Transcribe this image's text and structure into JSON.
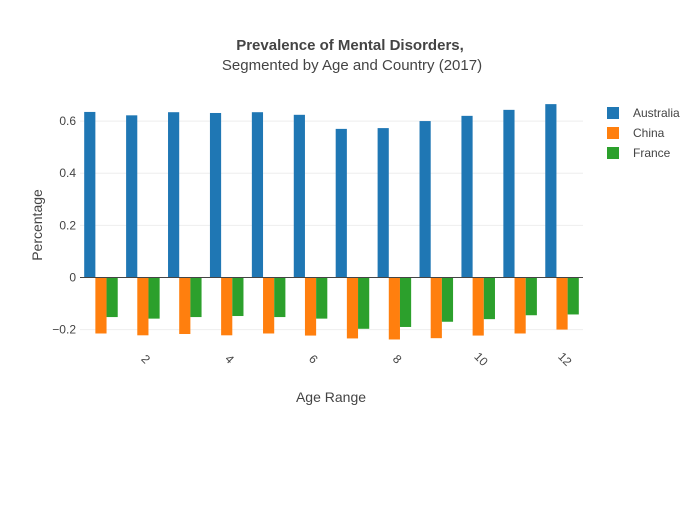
{
  "chart_data": {
    "type": "bar",
    "title": "Prevalence of Mental Disorders,",
    "subtitle": "Segmented by Age and Country (2017)",
    "xlabel": "Age Range",
    "ylabel": "Percentage",
    "ylim": [
      -0.24,
      0.7
    ],
    "yticks": [
      -0.2,
      0,
      0.2,
      0.4,
      0.6
    ],
    "ytick_labels": [
      "−0.2",
      "0",
      "0.2",
      "0.4",
      "0.6"
    ],
    "xlim": [
      0.5,
      12.5
    ],
    "xticks": [
      2,
      4,
      6,
      8,
      10,
      12
    ],
    "xtick_labels": [
      "2",
      "4",
      "6",
      "8",
      "10",
      "12"
    ],
    "x": [
      1,
      2,
      3,
      4,
      5,
      6,
      7,
      8,
      9,
      10,
      11,
      12
    ],
    "grid": true,
    "legend_position": "top-right",
    "series": [
      {
        "name": "Australia",
        "color": "#1f77b4",
        "values": [
          0.635,
          0.622,
          0.634,
          0.631,
          0.634,
          0.624,
          0.57,
          0.573,
          0.6,
          0.62,
          0.643,
          0.665
        ]
      },
      {
        "name": "China",
        "color": "#ff7f0e",
        "values": [
          -0.215,
          -0.222,
          -0.217,
          -0.222,
          -0.215,
          -0.223,
          -0.234,
          -0.238,
          -0.233,
          -0.223,
          -0.215,
          -0.2
        ]
      },
      {
        "name": "France",
        "color": "#2ca02c",
        "values": [
          -0.152,
          -0.158,
          -0.152,
          -0.148,
          -0.152,
          -0.158,
          -0.197,
          -0.19,
          -0.17,
          -0.16,
          -0.145,
          -0.142
        ]
      }
    ]
  }
}
